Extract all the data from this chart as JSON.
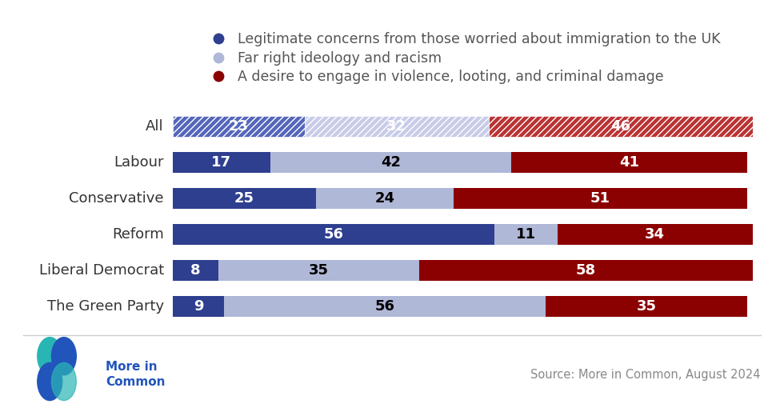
{
  "categories": [
    "All",
    "Labour",
    "Conservative",
    "Reform",
    "Liberal Democrat",
    "The Green Party"
  ],
  "values": [
    [
      23,
      32,
      46
    ],
    [
      17,
      42,
      41
    ],
    [
      25,
      24,
      51
    ],
    [
      56,
      11,
      34
    ],
    [
      8,
      35,
      58
    ],
    [
      9,
      56,
      35
    ]
  ],
  "colors_solid": [
    "#2e3f8f",
    "#b0b8d8",
    "#8b0000"
  ],
  "colors_hatch": [
    "#5566bb",
    "#c8cce8",
    "#bb3333"
  ],
  "hatch_row": 0,
  "legend_labels": [
    "Legitimate concerns from those worried about immigration to the UK",
    "Far right ideology and racism",
    "A desire to engage in violence, looting, and criminal damage"
  ],
  "legend_colors": [
    "#2e3f8f",
    "#b0b8d8",
    "#8b0000"
  ],
  "source_text": "Source: More in Common, August 2024",
  "background_color": "#ffffff",
  "bar_height": 0.58,
  "label_fontsize": 13,
  "value_fontsize": 13,
  "legend_fontsize": 12.5
}
